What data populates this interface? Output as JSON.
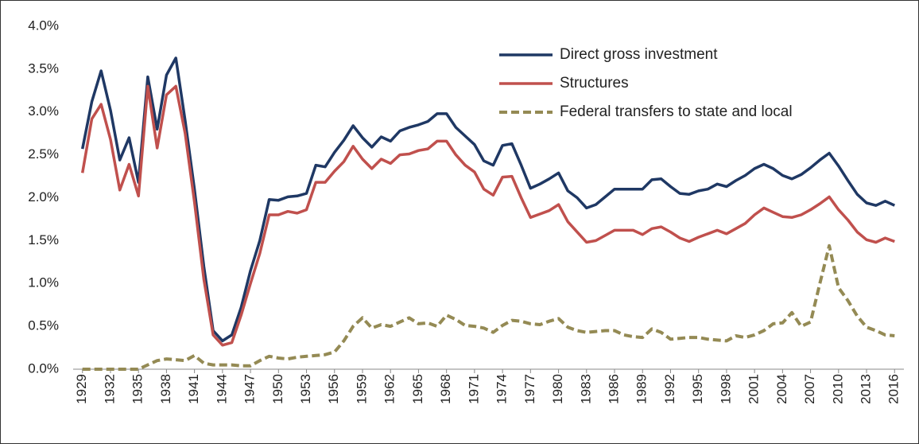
{
  "chart_data": {
    "type": "line",
    "x": [
      1929,
      1930,
      1931,
      1932,
      1933,
      1934,
      1935,
      1936,
      1937,
      1938,
      1939,
      1940,
      1941,
      1942,
      1943,
      1944,
      1945,
      1946,
      1947,
      1948,
      1949,
      1950,
      1951,
      1952,
      1953,
      1954,
      1955,
      1956,
      1957,
      1958,
      1959,
      1960,
      1961,
      1962,
      1963,
      1964,
      1965,
      1966,
      1967,
      1968,
      1969,
      1970,
      1971,
      1972,
      1973,
      1974,
      1975,
      1976,
      1977,
      1978,
      1979,
      1980,
      1981,
      1982,
      1983,
      1984,
      1985,
      1986,
      1987,
      1988,
      1989,
      1990,
      1991,
      1992,
      1993,
      1994,
      1995,
      1996,
      1997,
      1998,
      1999,
      2000,
      2001,
      2002,
      2003,
      2004,
      2005,
      2006,
      2007,
      2008,
      2009,
      2010,
      2011,
      2012,
      2013,
      2014,
      2015,
      2016
    ],
    "series": [
      {
        "name": "Direct gross investment",
        "color": "#1f3864",
        "style": "solid",
        "values": [
          2.57,
          3.12,
          3.48,
          3.02,
          2.44,
          2.7,
          2.18,
          3.41,
          2.8,
          3.43,
          3.63,
          2.9,
          2.1,
          1.2,
          0.45,
          0.33,
          0.4,
          0.72,
          1.15,
          1.5,
          1.98,
          1.97,
          2.01,
          2.02,
          2.05,
          2.38,
          2.36,
          2.53,
          2.67,
          2.84,
          2.7,
          2.59,
          2.71,
          2.66,
          2.78,
          2.82,
          2.85,
          2.89,
          2.98,
          2.98,
          2.82,
          2.72,
          2.62,
          2.43,
          2.38,
          2.61,
          2.63,
          2.38,
          2.11,
          2.16,
          2.22,
          2.29,
          2.08,
          2.0,
          1.88,
          1.92,
          2.01,
          2.1,
          2.1,
          2.1,
          2.1,
          2.21,
          2.22,
          2.13,
          2.05,
          2.04,
          2.08,
          2.1,
          2.16,
          2.13,
          2.2,
          2.26,
          2.34,
          2.39,
          2.34,
          2.26,
          2.22,
          2.27,
          2.35,
          2.44,
          2.52,
          2.37,
          2.2,
          2.04,
          1.94,
          1.91,
          1.96,
          1.91
        ]
      },
      {
        "name": "Structures",
        "color": "#c0504d",
        "style": "solid",
        "values": [
          2.29,
          2.92,
          3.09,
          2.68,
          2.09,
          2.39,
          2.02,
          3.3,
          2.58,
          3.2,
          3.3,
          2.75,
          1.95,
          1.05,
          0.4,
          0.28,
          0.31,
          0.63,
          1.0,
          1.35,
          1.8,
          1.8,
          1.84,
          1.82,
          1.86,
          2.18,
          2.18,
          2.31,
          2.42,
          2.6,
          2.45,
          2.34,
          2.45,
          2.4,
          2.5,
          2.51,
          2.55,
          2.57,
          2.66,
          2.66,
          2.5,
          2.38,
          2.3,
          2.1,
          2.03,
          2.24,
          2.25,
          2.0,
          1.77,
          1.81,
          1.85,
          1.92,
          1.72,
          1.6,
          1.48,
          1.5,
          1.56,
          1.62,
          1.62,
          1.62,
          1.57,
          1.64,
          1.66,
          1.6,
          1.53,
          1.49,
          1.54,
          1.58,
          1.62,
          1.58,
          1.64,
          1.7,
          1.8,
          1.88,
          1.83,
          1.78,
          1.77,
          1.8,
          1.86,
          1.93,
          2.01,
          1.86,
          1.74,
          1.6,
          1.51,
          1.48,
          1.53,
          1.49
        ]
      },
      {
        "name": "Federal transfers to state and local",
        "color": "#948a54",
        "style": "dashed",
        "values": [
          0,
          0,
          0,
          0,
          0,
          0,
          0,
          0.05,
          0.1,
          0.12,
          0.11,
          0.1,
          0.16,
          0.07,
          0.05,
          0.05,
          0.05,
          0.04,
          0.04,
          0.1,
          0.15,
          0.13,
          0.12,
          0.14,
          0.15,
          0.16,
          0.17,
          0.2,
          0.33,
          0.5,
          0.6,
          0.48,
          0.52,
          0.5,
          0.55,
          0.6,
          0.53,
          0.54,
          0.5,
          0.63,
          0.58,
          0.51,
          0.5,
          0.48,
          0.43,
          0.51,
          0.57,
          0.56,
          0.53,
          0.52,
          0.56,
          0.59,
          0.49,
          0.45,
          0.43,
          0.44,
          0.45,
          0.45,
          0.4,
          0.38,
          0.37,
          0.47,
          0.43,
          0.35,
          0.36,
          0.37,
          0.37,
          0.35,
          0.34,
          0.33,
          0.39,
          0.37,
          0.4,
          0.45,
          0.53,
          0.54,
          0.66,
          0.5,
          0.55,
          1.0,
          1.44,
          0.95,
          0.8,
          0.62,
          0.49,
          0.45,
          0.4,
          0.39
        ]
      }
    ],
    "xlim": [
      1928,
      2017
    ],
    "xticks": [
      1929,
      1932,
      1935,
      1938,
      1941,
      1944,
      1947,
      1950,
      1953,
      1956,
      1959,
      1962,
      1965,
      1968,
      1971,
      1974,
      1977,
      1980,
      1983,
      1986,
      1989,
      1992,
      1995,
      1998,
      2001,
      2004,
      2007,
      2010,
      2013,
      2016
    ],
    "ylim": [
      0,
      4
    ],
    "yticks": [
      {
        "value": 0,
        "label": "0.0%"
      },
      {
        "value": 0.5,
        "label": "0.5%"
      },
      {
        "value": 1,
        "label": "1.0%"
      },
      {
        "value": 1.5,
        "label": "1.5%"
      },
      {
        "value": 2,
        "label": "2.0%"
      },
      {
        "value": 2.5,
        "label": "2.5%"
      },
      {
        "value": 3,
        "label": "3.0%"
      },
      {
        "value": 3.5,
        "label": "3.5%"
      },
      {
        "value": 4,
        "label": "4.0%"
      }
    ],
    "grid": false,
    "legend": "upper right"
  }
}
